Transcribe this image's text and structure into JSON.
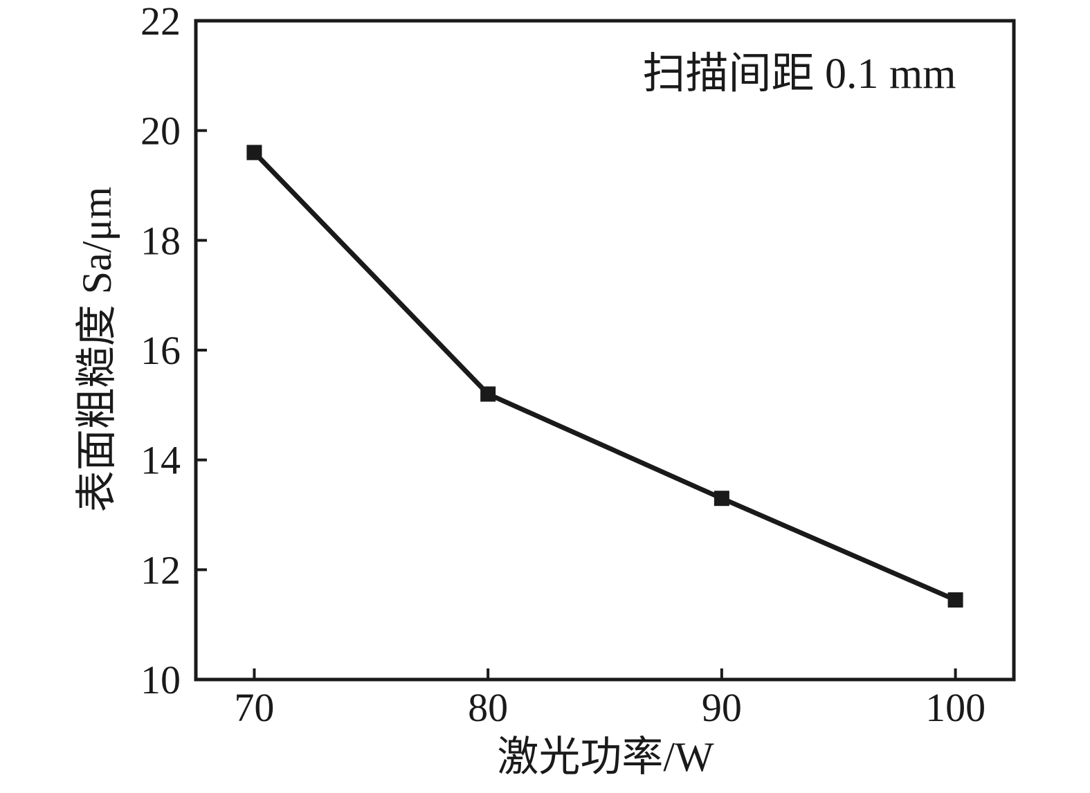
{
  "chart_data": {
    "type": "line",
    "title": "",
    "xlabel": "激光功率/W",
    "ylabel": "表面粗糙度 Sa/μm",
    "annotation": "扫描间距 0.1 mm",
    "x": [
      70,
      80,
      90,
      100
    ],
    "series": [
      {
        "name": "表面粗糙度 Sa",
        "values": [
          19.6,
          15.2,
          13.3,
          11.45
        ]
      }
    ],
    "xticks": [
      70,
      80,
      90,
      100
    ],
    "yticks": [
      10,
      12,
      14,
      16,
      18,
      20,
      22
    ],
    "xlim": [
      67.5,
      102.5
    ],
    "ylim": [
      10,
      22
    ],
    "grid": false,
    "legend_position": "none",
    "marker": "square",
    "line_color": "#1a1a1a",
    "marker_color": "#1a1a1a",
    "axis_color": "#1a1a1a",
    "background": "#ffffff"
  }
}
